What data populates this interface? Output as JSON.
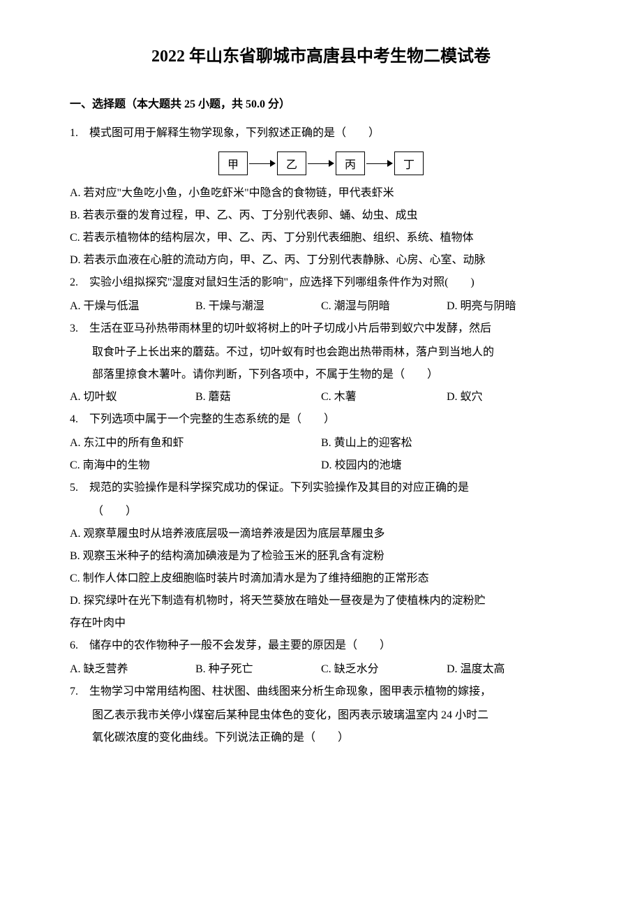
{
  "title": "2022 年山东省聊城市高唐县中考生物二模试卷",
  "section1": {
    "header": "一、选择题（本大题共 25 小题，共 50.0 分）"
  },
  "q1": {
    "num": "1.",
    "text": "模式图可用于解释生物学现象，下列叙述正确的是（　　）",
    "diagram": {
      "a": "甲",
      "b": "乙",
      "c": "丙",
      "d": "丁"
    },
    "A": "A. 若对应\"大鱼吃小鱼，小鱼吃虾米\"中隐含的食物链，甲代表虾米",
    "B": "B. 若表示蚕的发育过程，甲、乙、丙、丁分别代表卵、蛹、幼虫、成虫",
    "C": "C. 若表示植物体的结构层次，甲、乙、丙、丁分别代表细胞、组织、系统、植物体",
    "D": "D. 若表示血液在心脏的流动方向，甲、乙、丙、丁分别代表静脉、心房、心室、动脉"
  },
  "q2": {
    "num": "2.",
    "text": "实验小组拟探究\"湿度对鼠妇生活的影响\"，应选择下列哪组条件作为对照(　　)",
    "A": "A. 干燥与低温",
    "B": "B. 干燥与潮湿",
    "C": "C. 潮湿与阴暗",
    "D": "D. 明亮与阴暗"
  },
  "q3": {
    "num": "3.",
    "text": "生活在亚马孙热带雨林里的切叶蚁将树上的叶子切成小片后带到蚁穴中发酵，然后",
    "cont1": "取食叶子上长出来的蘑菇。不过，切叶蚁有时也会跑出热带雨林，落户到当地人的",
    "cont2": "部落里掠食木薯叶。请你判断，下列各项中，不属于生物的是（　　）",
    "A": "A. 切叶蚁",
    "B": "B. 蘑菇",
    "C": "C. 木薯",
    "D": "D. 蚁穴"
  },
  "q4": {
    "num": "4.",
    "text": "下列选项中属于一个完整的生态系统的是（　　）",
    "A": "A. 东江中的所有鱼和虾",
    "B": "B. 黄山上的迎客松",
    "C": "C. 南海中的生物",
    "D": "D. 校园内的池塘"
  },
  "q5": {
    "num": "5.",
    "text": "规范的实验操作是科学探究成功的保证。下列实验操作及其目的对应正确的是",
    "cont1": "（　　）",
    "A": "A. 观察草履虫时从培养液底层吸一滴培养液是因为底层草履虫多",
    "B": "B. 观察玉米种子的结构滴加碘液是为了检验玉米的胚乳含有淀粉",
    "C": "C. 制作人体口腔上皮细胞临时装片时滴加清水是为了维持细胞的正常形态",
    "D": "D. 探究绿叶在光下制造有机物时，将天竺葵放在暗处一昼夜是为了使植株内的淀粉贮",
    "Dcont": "存在叶肉中"
  },
  "q6": {
    "num": "6.",
    "text": "储存中的农作物种子一般不会发芽，最主要的原因是（　　）",
    "A": "A. 缺乏营养",
    "B": "B. 种子死亡",
    "C": "C. 缺乏水分",
    "D": "D. 温度太高"
  },
  "q7": {
    "num": "7.",
    "text": "生物学习中常用结构图、柱状图、曲线图来分析生命现象，图甲表示植物的嫁接，",
    "cont1": "图乙表示我市关停小煤窑后某种昆虫体色的变化，图丙表示玻璃温室内 24 小时二",
    "cont2": "氧化碳浓度的变化曲线。下列说法正确的是（　　）"
  }
}
